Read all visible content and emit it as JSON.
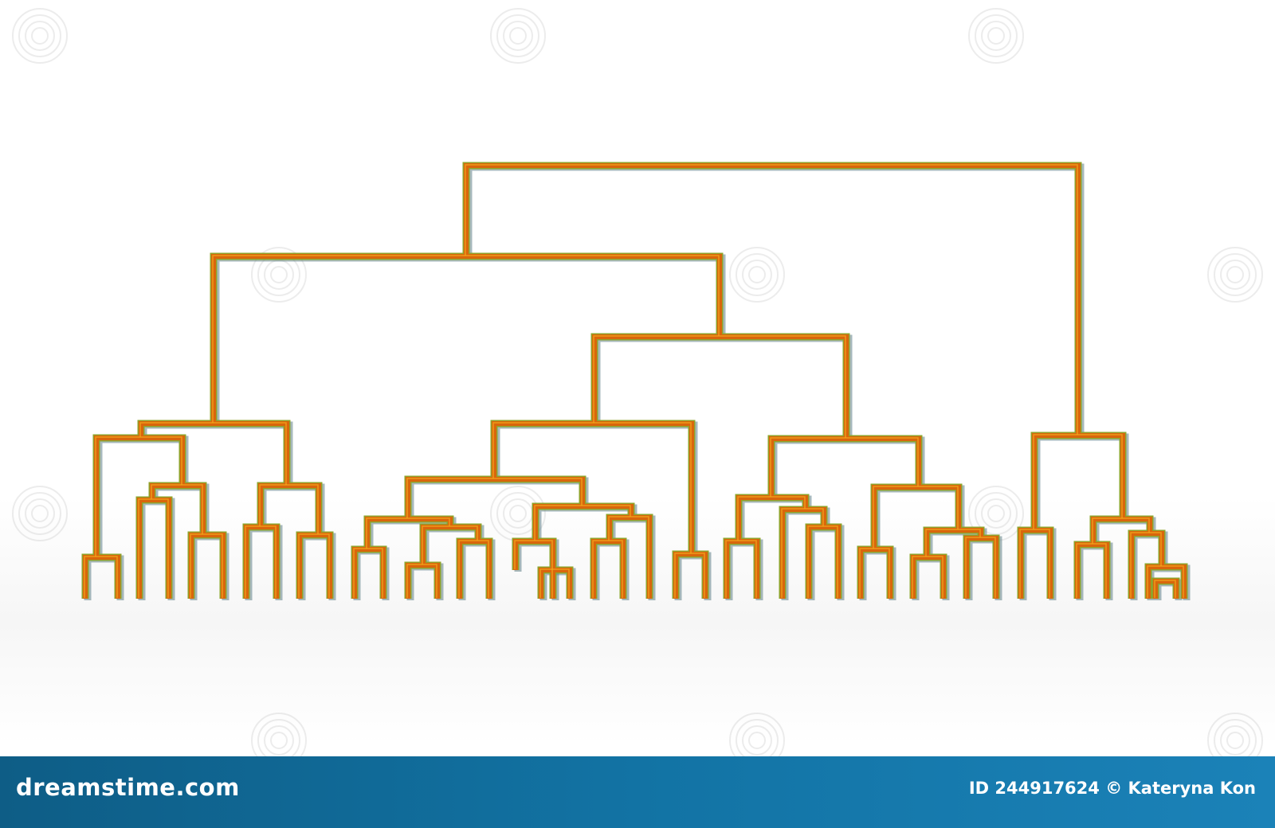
{
  "footer": {
    "logo_text": "dreamstime.com",
    "credit_text": "ID 244917624 © Kateryna Kon"
  },
  "watermark": {
    "text": "dreamstime",
    "icon": "spiral-icon"
  },
  "colors": {
    "tube_outer": "#8fa32a",
    "tube_inner": "#d9660c",
    "tube_highlight": "#f2a71b",
    "footer_bg": "#1273a4"
  },
  "dendrogram": {
    "leaf_count": 56,
    "style": "3d-tube"
  }
}
